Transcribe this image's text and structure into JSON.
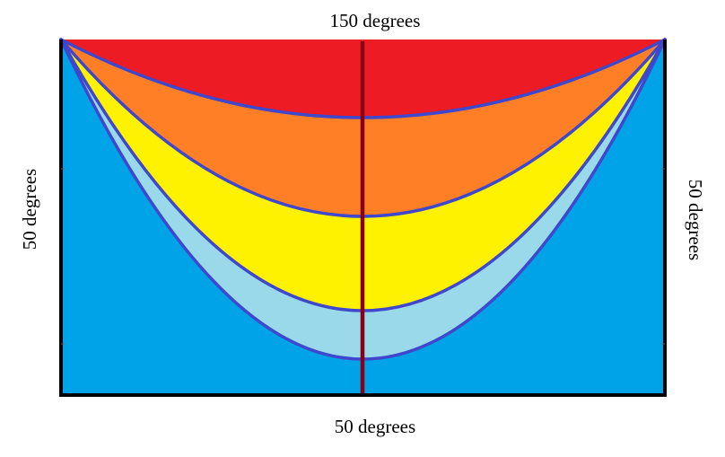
{
  "labels": {
    "top": "150 degrees",
    "bottom": "50 degrees",
    "left": "50 degrees",
    "right": "50 degrees"
  },
  "bands": [
    {
      "name": "red-band",
      "color": "#ED1C24"
    },
    {
      "name": "orange-band",
      "color": "#FF7F27"
    },
    {
      "name": "yellow-band",
      "color": "#FFF200"
    },
    {
      "name": "light-blue-band",
      "color": "#99D9EA"
    },
    {
      "name": "blue-background",
      "color": "#00A2E8"
    }
  ],
  "colors": {
    "curve_stroke": "#3F48CC",
    "center_line": "#880015",
    "frame": "#000000"
  }
}
